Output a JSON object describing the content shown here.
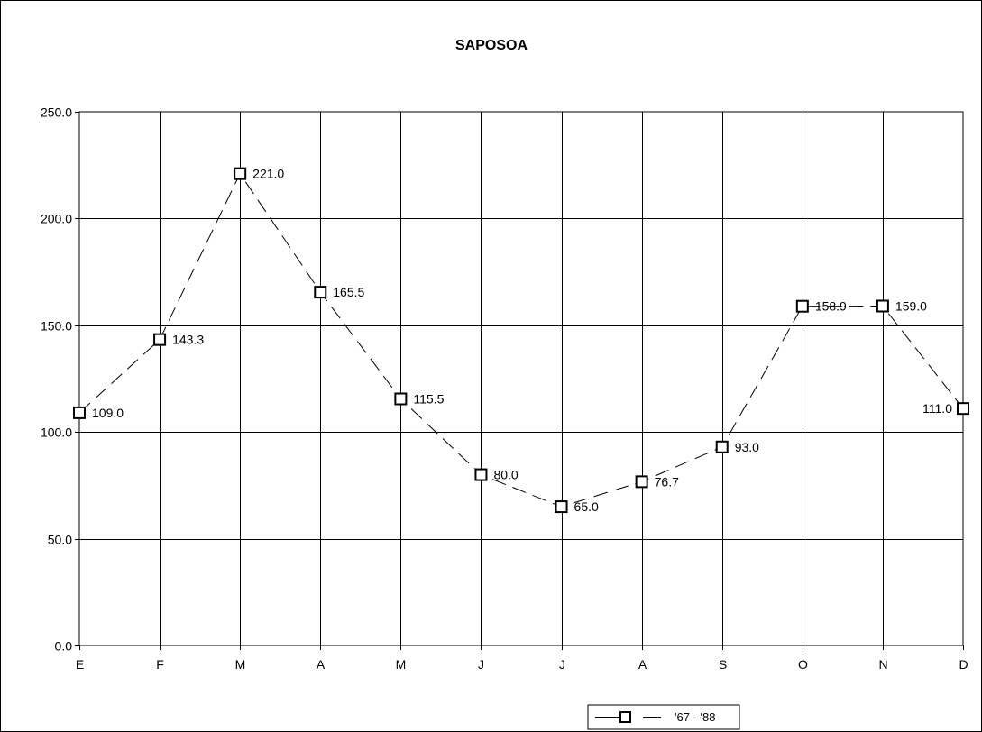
{
  "chart_data": {
    "type": "line",
    "title": "SAPOSOA",
    "xlabel": "",
    "ylabel": "",
    "categories": [
      "E",
      "F",
      "M",
      "A",
      "M",
      "J",
      "J",
      "A",
      "S",
      "O",
      "N",
      "D"
    ],
    "series": [
      {
        "name": "'67 - '88",
        "values": [
          109.0,
          143.3,
          221.0,
          165.5,
          115.5,
          80.0,
          65.0,
          76.7,
          93.0,
          158.9,
          159.0,
          111.0
        ],
        "data_labels": [
          "109.0",
          "143.3",
          "221.0",
          "165.5",
          "115.5",
          "80.0",
          "65.0",
          "76.7",
          "93.0",
          "158.9",
          "159.0",
          "111.0"
        ],
        "line_style": "dashed",
        "marker": "square",
        "color": "#000000"
      }
    ],
    "ylim": [
      0,
      250
    ],
    "yticks": [
      0,
      50,
      100,
      150,
      200,
      250
    ],
    "ytick_labels": [
      "0.0",
      "50.0",
      "100.0",
      "150.0",
      "200.0",
      "250.0"
    ],
    "grid": true,
    "legend_position": "bottom"
  }
}
